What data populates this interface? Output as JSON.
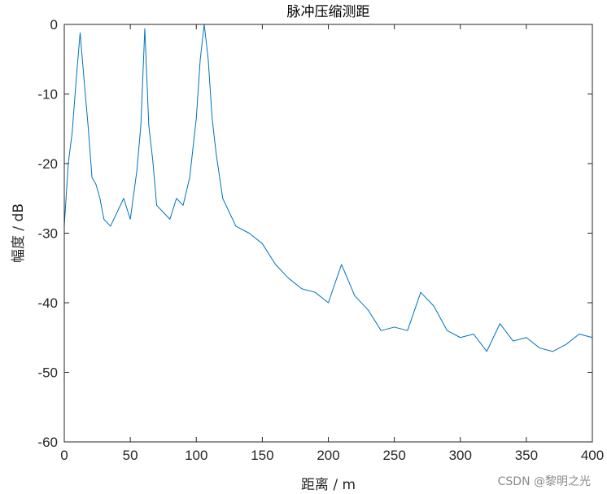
{
  "chart_data": {
    "type": "line",
    "title": "脉冲压缩测距",
    "xlabel": "距离 / m",
    "ylabel": "幅度 / dB",
    "xlim": [
      0,
      400
    ],
    "ylim": [
      -60,
      0
    ],
    "x_ticks": [
      "0",
      "50",
      "100",
      "150",
      "200",
      "250",
      "300",
      "350",
      "400"
    ],
    "y_ticks": [
      "0",
      "-10",
      "-20",
      "-30",
      "-40",
      "-50",
      "-60"
    ],
    "grid": false,
    "line_color": "#0072BD",
    "series": [
      {
        "peaks_m": [
          12,
          61,
          106
        ],
        "peaks_db": [
          -1.2,
          -0.6,
          0
        ],
        "x": [
          0,
          3,
          6,
          9,
          12,
          15,
          18,
          21,
          24,
          27,
          30,
          35,
          40,
          45,
          50,
          55,
          58,
          61,
          64,
          67,
          70,
          75,
          80,
          85,
          90,
          95,
          100,
          103,
          106,
          109,
          112,
          115,
          120,
          125,
          130,
          140,
          150,
          160,
          170,
          180,
          190,
          200,
          210,
          220,
          230,
          240,
          250,
          260,
          270,
          280,
          290,
          300,
          310,
          320,
          330,
          340,
          350,
          360,
          370,
          380,
          390,
          400
        ],
        "y": [
          -29,
          -20,
          -15.5,
          -8,
          -1.2,
          -8,
          -14.5,
          -22,
          -23,
          -25,
          -28,
          -29,
          -27,
          -25,
          -28,
          -21,
          -14.5,
          -0.6,
          -14.5,
          -19.5,
          -26,
          -27,
          -28,
          -25,
          -26,
          -22,
          -13.5,
          -5,
          0,
          -5,
          -13.5,
          -18.5,
          -25,
          -27,
          -29,
          -30,
          -31.5,
          -34.5,
          -36.5,
          -38,
          -38.5,
          -40,
          -34.5,
          -39,
          -41,
          -44,
          -43.5,
          -44,
          -38.5,
          -40.5,
          -44,
          -45,
          -44.5,
          -47,
          -43,
          -45.5,
          -45,
          -46.5,
          -47,
          -46,
          -44.5,
          -45
        ]
      }
    ]
  },
  "watermark": "CSDN @黎明之光"
}
